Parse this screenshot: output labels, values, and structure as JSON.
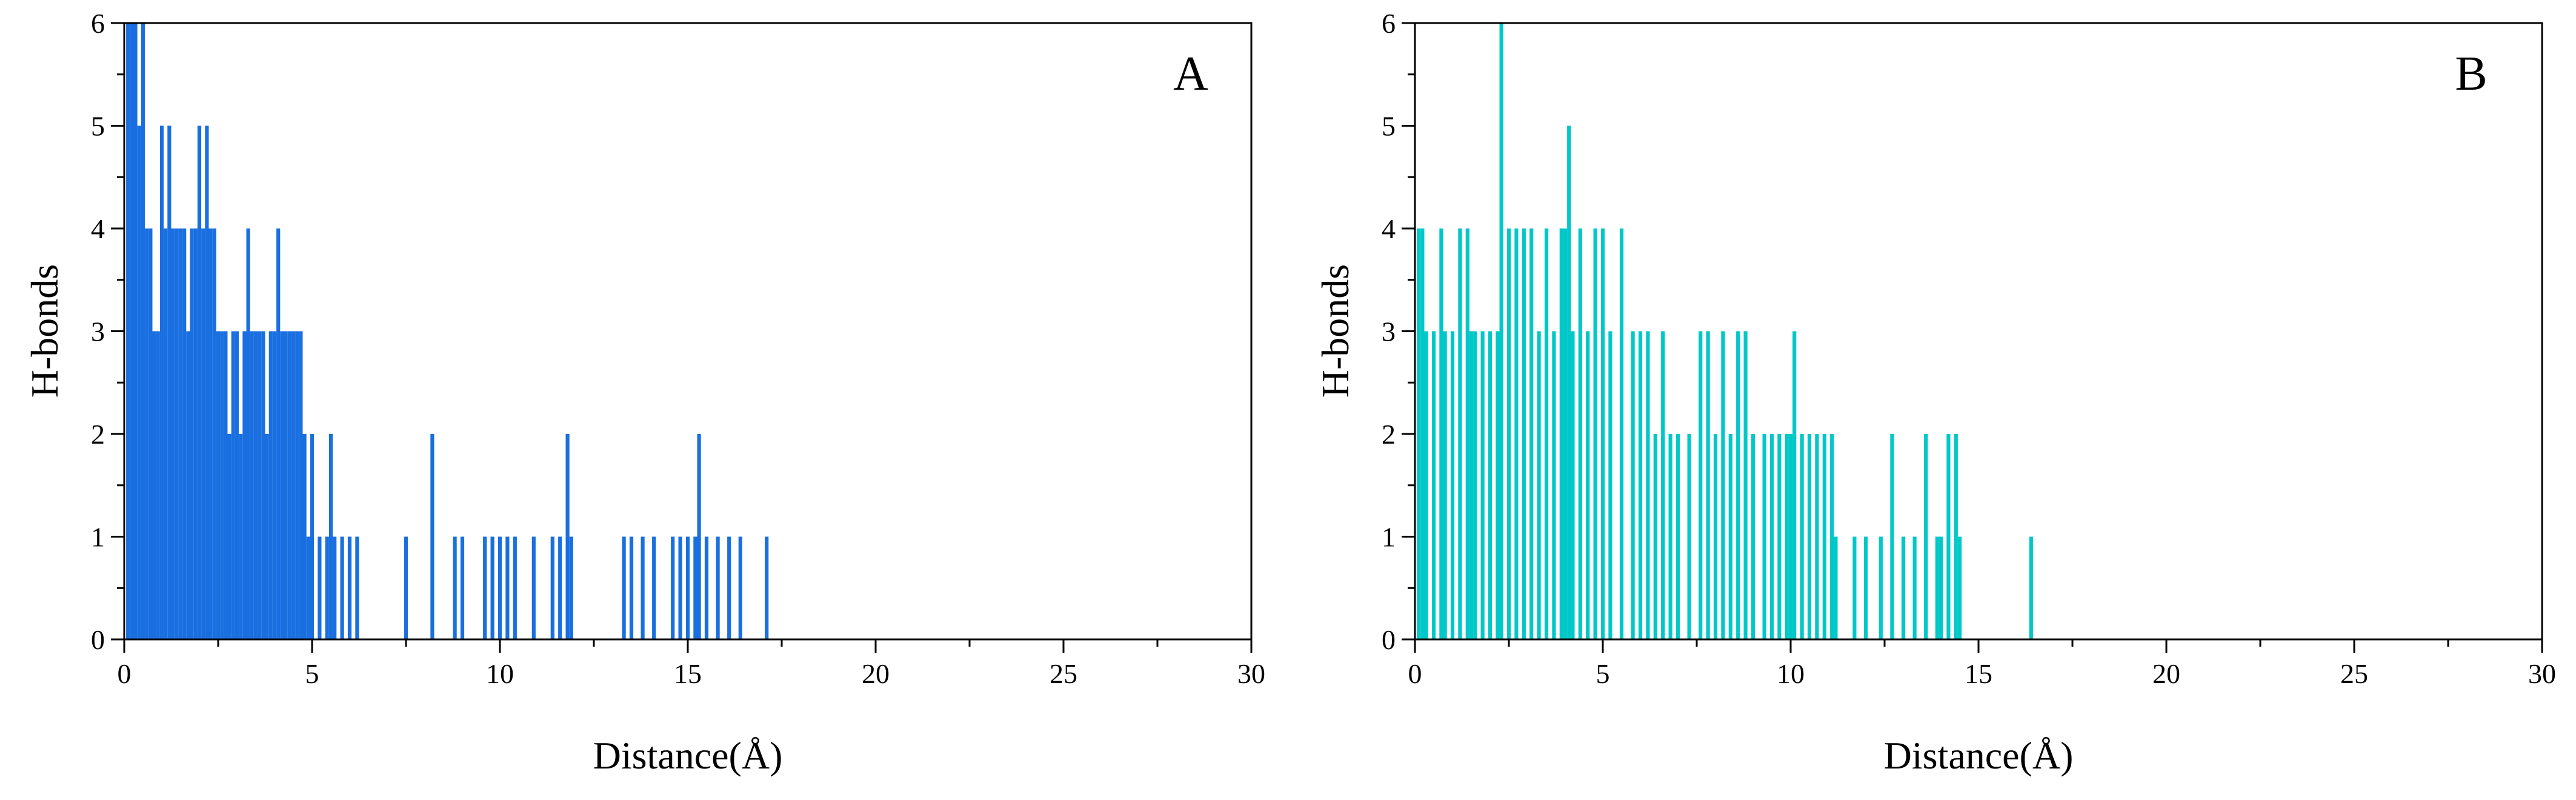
{
  "chart_data": [
    {
      "panel_label": "A",
      "type": "bar",
      "xlabel": "Distance(Å)",
      "ylabel": "H-bonds",
      "xlim": [
        0,
        30
      ],
      "ylim": [
        0,
        6
      ],
      "xticks": [
        "0",
        "5",
        "10",
        "15",
        "20",
        "25",
        "30"
      ],
      "yticks": [
        "0",
        "1",
        "2",
        "3",
        "4",
        "5",
        "6"
      ],
      "grid": false,
      "color": "#1a6fe0",
      "series": [
        {
          "x": [
            0.1,
            0.2,
            0.3,
            0.4,
            0.5,
            0.6,
            0.7,
            0.8,
            0.9,
            1.0,
            1.1,
            1.2,
            1.3,
            1.4,
            1.5,
            1.6,
            1.7,
            1.8,
            1.9,
            2.0,
            2.1,
            2.2,
            2.3,
            2.4,
            2.5,
            2.6,
            2.7,
            2.8,
            2.9,
            3.0,
            3.1,
            3.2,
            3.3,
            3.4,
            3.5,
            3.6,
            3.7,
            3.8,
            3.9,
            4.0,
            4.1,
            4.2,
            4.3,
            4.4,
            4.5,
            4.6,
            4.7,
            4.8,
            4.9,
            5.0,
            5.2,
            5.4,
            5.5,
            5.6,
            5.8,
            6.0,
            6.2,
            7.5,
            8.2,
            8.8,
            9.0,
            9.6,
            9.8,
            10.0,
            10.2,
            10.4,
            10.9,
            11.4,
            11.6,
            11.8,
            11.9,
            13.3,
            13.5,
            13.8,
            14.1,
            14.6,
            14.8,
            15.0,
            15.2,
            15.3,
            15.5,
            15.8,
            16.1,
            16.4,
            17.1
          ],
          "y": [
            6,
            6,
            6,
            5,
            6,
            4,
            4,
            3,
            3,
            5,
            4,
            5,
            4,
            4,
            4,
            4,
            3,
            4,
            4,
            5,
            4,
            5,
            4,
            4,
            3,
            3,
            3,
            2,
            3,
            3,
            2,
            3,
            4,
            3,
            3,
            3,
            3,
            2,
            3,
            3,
            4,
            3,
            3,
            3,
            3,
            3,
            3,
            2,
            1,
            2,
            1,
            1,
            2,
            1,
            1,
            1,
            1,
            1,
            2,
            1,
            1,
            1,
            1,
            1,
            1,
            1,
            1,
            1,
            1,
            2,
            1,
            1,
            1,
            1,
            1,
            1,
            1,
            1,
            1,
            2,
            1,
            1,
            1,
            1,
            1
          ]
        }
      ]
    },
    {
      "panel_label": "B",
      "type": "bar",
      "xlabel": "Distance(Å)",
      "ylabel": "H-bonds",
      "xlim": [
        0,
        30
      ],
      "ylim": [
        0,
        6
      ],
      "xticks": [
        "0",
        "5",
        "10",
        "15",
        "20",
        "25",
        "30"
      ],
      "yticks": [
        "0",
        "1",
        "2",
        "3",
        "4",
        "5",
        "6"
      ],
      "grid": false,
      "color": "#00c8c8",
      "series": [
        {
          "x": [
            0.1,
            0.2,
            0.3,
            0.5,
            0.7,
            0.8,
            1.0,
            1.2,
            1.4,
            1.5,
            1.6,
            1.8,
            2.0,
            2.2,
            2.3,
            2.5,
            2.7,
            2.9,
            3.1,
            3.3,
            3.5,
            3.7,
            3.9,
            4.0,
            4.1,
            4.2,
            4.4,
            4.6,
            4.8,
            5.0,
            5.2,
            5.5,
            5.8,
            6.0,
            6.2,
            6.4,
            6.6,
            6.8,
            7.0,
            7.3,
            7.6,
            7.8,
            8.0,
            8.2,
            8.4,
            8.6,
            8.8,
            9.0,
            9.3,
            9.5,
            9.7,
            9.9,
            10.0,
            10.1,
            10.3,
            10.5,
            10.7,
            10.9,
            11.1,
            11.2,
            11.7,
            12.0,
            12.4,
            12.7,
            13.0,
            13.3,
            13.6,
            13.9,
            14.0,
            14.2,
            14.4,
            14.5,
            16.4
          ],
          "y": [
            4,
            4,
            3,
            3,
            4,
            3,
            3,
            4,
            4,
            3,
            3,
            3,
            3,
            3,
            6,
            4,
            4,
            4,
            4,
            3,
            4,
            3,
            4,
            4,
            5,
            3,
            4,
            3,
            4,
            4,
            3,
            4,
            3,
            3,
            3,
            2,
            3,
            2,
            2,
            2,
            3,
            3,
            2,
            3,
            2,
            3,
            3,
            2,
            2,
            2,
            2,
            2,
            2,
            3,
            2,
            2,
            2,
            2,
            2,
            1,
            1,
            1,
            1,
            2,
            1,
            1,
            2,
            1,
            1,
            2,
            2,
            1,
            1
          ]
        }
      ]
    }
  ]
}
